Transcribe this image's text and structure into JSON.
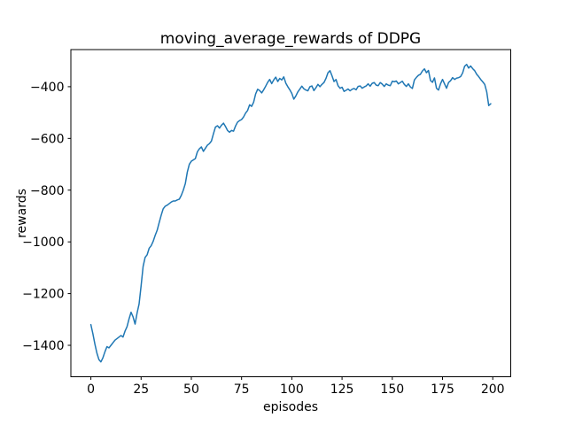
{
  "chart_data": {
    "type": "line",
    "title": "moving_average_rewards of DDPG",
    "xlabel": "episodes",
    "ylabel": "rewards",
    "grid": false,
    "legend": "none",
    "background_color": "#ffffff",
    "axes_color": "#000000",
    "line_color": "#1f77b4",
    "xlim": [
      -9.95,
      208.95
    ],
    "ylim": [
      -1521.5,
      -256.5
    ],
    "xticks": {
      "values": [
        0,
        25,
        50,
        75,
        100,
        125,
        150,
        175,
        200
      ],
      "labels": [
        "0",
        "25",
        "50",
        "75",
        "100",
        "125",
        "150",
        "175",
        "200"
      ]
    },
    "yticks": {
      "values": [
        -400,
        -600,
        -800,
        -1000,
        -1200,
        -1400
      ],
      "labels": [
        "−400",
        "−600",
        "−800",
        "−1000",
        "−1200",
        "−1400"
      ]
    },
    "series": [
      {
        "name": "moving_average_rewards",
        "color": "#1f77b4",
        "x_start": 0,
        "x_step": 1,
        "values": [
          -1320,
          -1355,
          -1395,
          -1430,
          -1455,
          -1464,
          -1448,
          -1425,
          -1405,
          -1410,
          -1400,
          -1390,
          -1380,
          -1374,
          -1368,
          -1362,
          -1368,
          -1345,
          -1328,
          -1298,
          -1272,
          -1290,
          -1318,
          -1275,
          -1240,
          -1170,
          -1095,
          -1060,
          -1050,
          -1025,
          -1015,
          -998,
          -975,
          -955,
          -925,
          -897,
          -872,
          -862,
          -858,
          -852,
          -846,
          -842,
          -842,
          -838,
          -835,
          -820,
          -800,
          -775,
          -730,
          -700,
          -688,
          -683,
          -678,
          -652,
          -640,
          -633,
          -650,
          -638,
          -626,
          -620,
          -610,
          -582,
          -556,
          -551,
          -560,
          -549,
          -541,
          -554,
          -569,
          -576,
          -569,
          -572,
          -552,
          -537,
          -531,
          -527,
          -517,
          -502,
          -492,
          -470,
          -476,
          -460,
          -428,
          -410,
          -415,
          -424,
          -412,
          -398,
          -383,
          -372,
          -388,
          -374,
          -363,
          -380,
          -368,
          -374,
          -362,
          -386,
          -400,
          -412,
          -426,
          -448,
          -436,
          -420,
          -409,
          -398,
          -408,
          -413,
          -416,
          -400,
          -397,
          -415,
          -404,
          -391,
          -400,
          -391,
          -384,
          -368,
          -346,
          -338,
          -358,
          -380,
          -372,
          -396,
          -406,
          -402,
          -418,
          -414,
          -409,
          -416,
          -410,
          -407,
          -412,
          -399,
          -397,
          -406,
          -401,
          -397,
          -389,
          -398,
          -387,
          -384,
          -394,
          -396,
          -384,
          -390,
          -399,
          -389,
          -394,
          -396,
          -379,
          -381,
          -378,
          -389,
          -384,
          -379,
          -391,
          -399,
          -389,
          -401,
          -407,
          -374,
          -364,
          -356,
          -352,
          -339,
          -331,
          -346,
          -337,
          -376,
          -383,
          -366,
          -406,
          -413,
          -389,
          -372,
          -389,
          -406,
          -384,
          -377,
          -365,
          -372,
          -367,
          -365,
          -361,
          -347,
          -321,
          -314,
          -328,
          -320,
          -330,
          -338,
          -352,
          -361,
          -372,
          -381,
          -391,
          -420,
          -473,
          -466
        ]
      }
    ]
  }
}
